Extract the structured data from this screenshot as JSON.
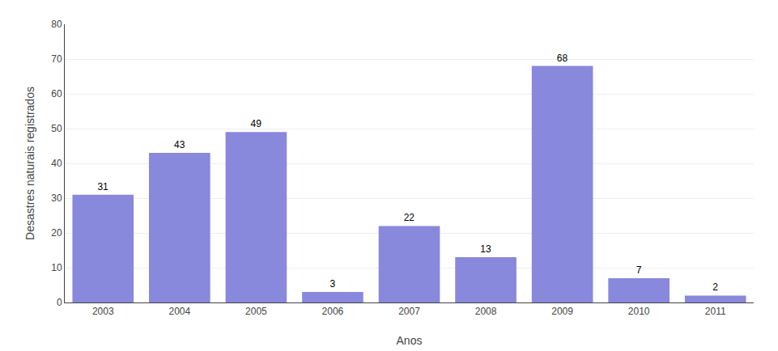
{
  "chart_data": {
    "type": "bar",
    "categories": [
      "2003",
      "2004",
      "2005",
      "2006",
      "2007",
      "2008",
      "2009",
      "2010",
      "2011"
    ],
    "values": [
      31,
      43,
      49,
      3,
      22,
      13,
      68,
      7,
      2
    ],
    "color": "#8888dd",
    "xlabel": "Anos",
    "ylabel": "Desastres naturais registrados",
    "ylim": [
      0,
      80
    ],
    "yticks": [
      0,
      10,
      20,
      30,
      40,
      50,
      60,
      70,
      80
    ],
    "grid": true,
    "data_labels": true
  }
}
